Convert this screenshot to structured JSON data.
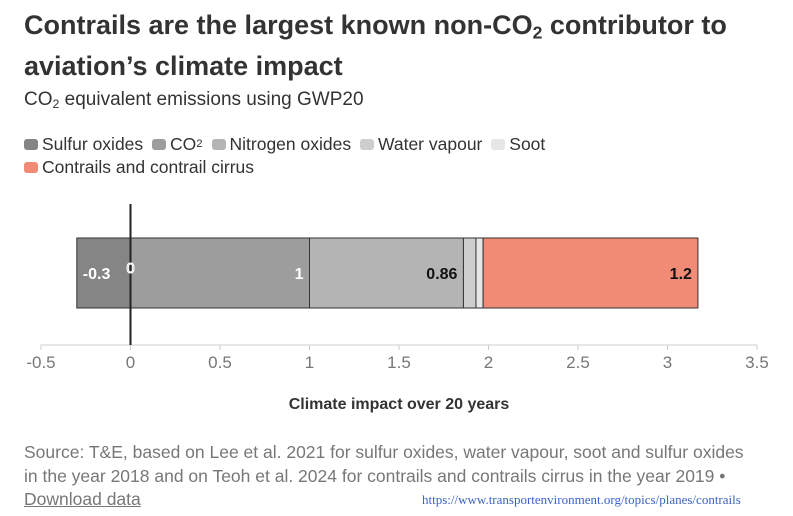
{
  "title_parts": {
    "a": "Contrails are the largest known non-CO",
    "sub": "2",
    "b": " contributor to aviation’s climate impact"
  },
  "subtitle_parts": {
    "a": "CO",
    "sub": "2",
    "b": " equivalent emissions using GWP20"
  },
  "legend": [
    {
      "label": "Sulfur oxides",
      "sub": "",
      "color": "#858585"
    },
    {
      "label": "CO",
      "sub": "2",
      "color": "#9d9d9d"
    },
    {
      "label": "Nitrogen oxides",
      "sub": "",
      "color": "#b4b4b4"
    },
    {
      "label": "Water vapour",
      "sub": "",
      "color": "#cecece"
    },
    {
      "label": "Soot",
      "sub": "",
      "color": "#e6e6e6"
    },
    {
      "label": "Contrails and contrail cirrus",
      "sub": "",
      "color": "#f28b76"
    }
  ],
  "chart_data": {
    "type": "bar",
    "orientation": "horizontal",
    "stacked": true,
    "diverging": true,
    "series": [
      {
        "name": "Sulfur oxides",
        "value": -0.3,
        "label": "-0.3",
        "color": "#858585"
      },
      {
        "name": "CO2",
        "value": 1,
        "label": "1",
        "color": "#9d9d9d"
      },
      {
        "name": "Nitrogen oxides",
        "value": 0.86,
        "label": "0.86",
        "color": "#b4b4b4"
      },
      {
        "name": "Water vapour",
        "value": 0.07,
        "label": "",
        "color": "#cecece"
      },
      {
        "name": "Soot",
        "value": 0.04,
        "label": "",
        "color": "#e6e6e6"
      },
      {
        "name": "Contrails and contrail cirrus",
        "value": 1.2,
        "label": "1.2",
        "color": "#f28b76"
      }
    ],
    "zero_label": "0",
    "xlim": [
      -0.5,
      3.5
    ],
    "xticks": [
      -0.5,
      0,
      0.5,
      1,
      1.5,
      2,
      2.5,
      3,
      3.5
    ],
    "xtick_labels": [
      "-0.5",
      "0",
      "0.5",
      "1",
      "1.5",
      "2",
      "2.5",
      "3",
      "3.5"
    ],
    "xlabel": "Climate impact over 20 years"
  },
  "source": {
    "text": "Source: T&E, based on Lee et al. 2021 for sulfur oxides, water vapour, soot and sulfur oxides in the year 2018 and on Teoh et al. 2024 for contrails and contrails cirrus in the year 2019 • ",
    "download_label": "Download data",
    "url": "https://www.transportenvironment.org/topics/planes/contrails"
  }
}
